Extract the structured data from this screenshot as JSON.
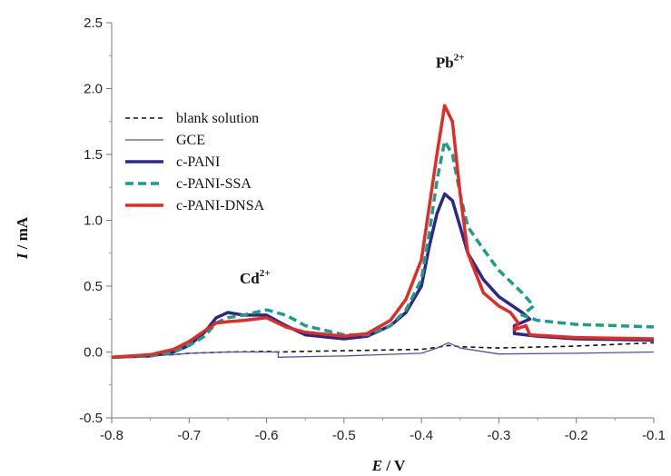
{
  "chart_data": {
    "type": "line",
    "title": "",
    "xlabel": {
      "symbol": "E",
      "unit": " / V"
    },
    "ylabel": {
      "symbol": "I",
      "unit": " / mA"
    },
    "xlim": [
      -0.8,
      -0.1
    ],
    "ylim": [
      -0.5,
      2.5
    ],
    "x_ticks": [
      "-0.8",
      "-0.7",
      "-0.6",
      "-0.5",
      "-0.4",
      "-0.3",
      "-0.2",
      "-0.1"
    ],
    "y_ticks": [
      "-0.5",
      "0.0",
      "0.5",
      "1.0",
      "1.5",
      "2.0",
      "2.5"
    ],
    "grid": false,
    "legend_position": "left",
    "annotations": [
      {
        "base": "Cd",
        "sup": "2+",
        "x": -0.615,
        "y": 0.52
      },
      {
        "base": "Pb",
        "sup": "2+",
        "x": -0.363,
        "y": 2.16
      }
    ],
    "series": [
      {
        "name": "blank solution",
        "color": "#111111",
        "style": "dashed",
        "points": [
          [
            -0.8,
            -0.04
          ],
          [
            -0.72,
            -0.02
          ],
          [
            -0.7,
            -0.01
          ],
          [
            -0.65,
            0.0
          ],
          [
            -0.6,
            0.005
          ],
          [
            -0.585,
            0.0
          ],
          [
            -0.58,
            0.0
          ],
          [
            -0.55,
            0.005
          ],
          [
            -0.5,
            0.01
          ],
          [
            -0.45,
            0.015
          ],
          [
            -0.4,
            0.02
          ],
          [
            -0.38,
            0.035
          ],
          [
            -0.365,
            0.05
          ],
          [
            -0.35,
            0.04
          ],
          [
            -0.3,
            0.03
          ],
          [
            -0.2,
            0.045
          ],
          [
            -0.1,
            0.07
          ]
        ]
      },
      {
        "name": "GCE",
        "color": "#5a4f9a",
        "style": "solid",
        "points": [
          [
            -0.8,
            -0.04
          ],
          [
            -0.72,
            -0.02
          ],
          [
            -0.7,
            -0.01
          ],
          [
            -0.65,
            0.0
          ],
          [
            -0.6,
            0.0
          ],
          [
            -0.585,
            0.0
          ],
          [
            -0.585,
            -0.04
          ],
          [
            -0.55,
            -0.035
          ],
          [
            -0.5,
            -0.03
          ],
          [
            -0.45,
            -0.02
          ],
          [
            -0.4,
            -0.01
          ],
          [
            -0.38,
            0.03
          ],
          [
            -0.365,
            0.07
          ],
          [
            -0.35,
            0.03
          ],
          [
            -0.3,
            -0.015
          ],
          [
            -0.2,
            -0.01
          ],
          [
            -0.1,
            0.0
          ]
        ]
      },
      {
        "name": "c-PANI",
        "color": "#2b2889",
        "style": "solid",
        "points": [
          [
            -0.8,
            -0.04
          ],
          [
            -0.75,
            -0.03
          ],
          [
            -0.72,
            0.0
          ],
          [
            -0.7,
            0.05
          ],
          [
            -0.68,
            0.15
          ],
          [
            -0.665,
            0.26
          ],
          [
            -0.65,
            0.3
          ],
          [
            -0.63,
            0.28
          ],
          [
            -0.6,
            0.28
          ],
          [
            -0.575,
            0.2
          ],
          [
            -0.55,
            0.13
          ],
          [
            -0.5,
            0.1
          ],
          [
            -0.47,
            0.12
          ],
          [
            -0.44,
            0.2
          ],
          [
            -0.42,
            0.3
          ],
          [
            -0.4,
            0.5
          ],
          [
            -0.39,
            0.8
          ],
          [
            -0.38,
            1.05
          ],
          [
            -0.37,
            1.2
          ],
          [
            -0.36,
            1.15
          ],
          [
            -0.35,
            0.95
          ],
          [
            -0.34,
            0.75
          ],
          [
            -0.32,
            0.55
          ],
          [
            -0.3,
            0.42
          ],
          [
            -0.27,
            0.3
          ],
          [
            -0.26,
            0.25
          ],
          [
            -0.28,
            0.2
          ],
          [
            -0.28,
            0.14
          ],
          [
            -0.25,
            0.12
          ],
          [
            -0.2,
            0.1
          ],
          [
            -0.1,
            0.09
          ]
        ]
      },
      {
        "name": "c-PANI-SSA",
        "color": "#1c9c8a",
        "style": "dashed",
        "points": [
          [
            -0.8,
            -0.04
          ],
          [
            -0.75,
            -0.03
          ],
          [
            -0.72,
            0.0
          ],
          [
            -0.7,
            0.05
          ],
          [
            -0.68,
            0.12
          ],
          [
            -0.665,
            0.22
          ],
          [
            -0.65,
            0.26
          ],
          [
            -0.63,
            0.28
          ],
          [
            -0.6,
            0.32
          ],
          [
            -0.575,
            0.28
          ],
          [
            -0.55,
            0.2
          ],
          [
            -0.5,
            0.13
          ],
          [
            -0.47,
            0.13
          ],
          [
            -0.44,
            0.2
          ],
          [
            -0.42,
            0.32
          ],
          [
            -0.4,
            0.55
          ],
          [
            -0.39,
            0.9
          ],
          [
            -0.38,
            1.3
          ],
          [
            -0.37,
            1.6
          ],
          [
            -0.36,
            1.5
          ],
          [
            -0.35,
            1.2
          ],
          [
            -0.34,
            0.95
          ],
          [
            -0.32,
            0.78
          ],
          [
            -0.3,
            0.62
          ],
          [
            -0.27,
            0.45
          ],
          [
            -0.255,
            0.35
          ],
          [
            -0.27,
            0.28
          ],
          [
            -0.25,
            0.24
          ],
          [
            -0.2,
            0.21
          ],
          [
            -0.1,
            0.19
          ]
        ]
      },
      {
        "name": "c-PANI-DNSA",
        "color": "#e32b25",
        "style": "solid",
        "points": [
          [
            -0.8,
            -0.04
          ],
          [
            -0.75,
            -0.02
          ],
          [
            -0.72,
            0.02
          ],
          [
            -0.7,
            0.08
          ],
          [
            -0.68,
            0.16
          ],
          [
            -0.665,
            0.22
          ],
          [
            -0.65,
            0.23
          ],
          [
            -0.63,
            0.24
          ],
          [
            -0.6,
            0.26
          ],
          [
            -0.575,
            0.19
          ],
          [
            -0.55,
            0.15
          ],
          [
            -0.5,
            0.12
          ],
          [
            -0.47,
            0.14
          ],
          [
            -0.44,
            0.24
          ],
          [
            -0.42,
            0.4
          ],
          [
            -0.4,
            0.7
          ],
          [
            -0.39,
            1.1
          ],
          [
            -0.38,
            1.5
          ],
          [
            -0.37,
            1.87
          ],
          [
            -0.36,
            1.75
          ],
          [
            -0.35,
            1.2
          ],
          [
            -0.34,
            0.75
          ],
          [
            -0.32,
            0.45
          ],
          [
            -0.3,
            0.35
          ],
          [
            -0.285,
            0.3
          ],
          [
            -0.275,
            0.22
          ],
          [
            -0.28,
            0.17
          ],
          [
            -0.265,
            0.2
          ],
          [
            -0.26,
            0.13
          ],
          [
            -0.2,
            0.11
          ],
          [
            -0.1,
            0.1
          ]
        ]
      }
    ]
  }
}
